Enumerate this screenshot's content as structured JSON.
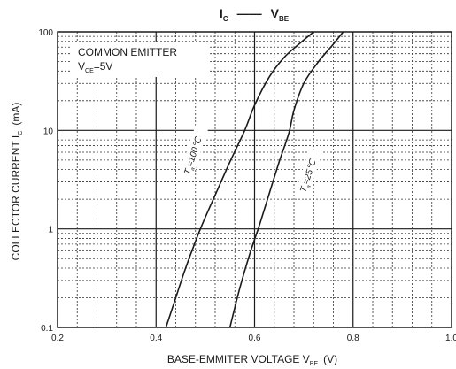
{
  "chart_data": {
    "type": "line",
    "title": {
      "left_symbol": "I",
      "left_subscript": "C",
      "dash": "——",
      "right_symbol": "V",
      "right_subscript": "BE"
    },
    "xlabel": {
      "text": "BASE-EMMITER VOLTAGE  V",
      "subscript": "BE",
      "unit": "(V)"
    },
    "ylabel": {
      "text": "COLLECTOR CURRENT  I",
      "subscript": "C",
      "unit": "(mA)"
    },
    "x_ticks": [
      "0.2",
      "0.4",
      "0.6",
      "0.8",
      "1.0"
    ],
    "y_ticks": [
      "0.1",
      "1",
      "10",
      "100"
    ],
    "xlim": [
      0.2,
      1.0
    ],
    "ylim": [
      0.1,
      100
    ],
    "y_scale": "log",
    "grid": true,
    "annotation": {
      "line1": "COMMON EMITTER",
      "line2_symbol": "V",
      "line2_subscript": "CE",
      "line2_value": "=5V"
    },
    "series": [
      {
        "name": "Ta=100°C",
        "label_symbol": "T",
        "label_subscript": "a",
        "label_value": "=100℃",
        "x": [
          0.42,
          0.44,
          0.46,
          0.49,
          0.52,
          0.55,
          0.58,
          0.6,
          0.63,
          0.66,
          0.69,
          0.72
        ],
        "y": [
          0.1,
          0.2,
          0.4,
          1.0,
          2.2,
          4.8,
          10,
          18,
          35,
          55,
          75,
          100
        ]
      },
      {
        "name": "Ta=25°C",
        "label_symbol": "T",
        "label_subscript": "a",
        "label_value": "=25℃",
        "x": [
          0.55,
          0.57,
          0.59,
          0.61,
          0.63,
          0.65,
          0.67,
          0.68,
          0.7,
          0.73,
          0.76,
          0.78
        ],
        "y": [
          0.1,
          0.25,
          0.55,
          1.1,
          2.3,
          4.8,
          9.5,
          16,
          30,
          50,
          75,
          100
        ]
      }
    ]
  }
}
